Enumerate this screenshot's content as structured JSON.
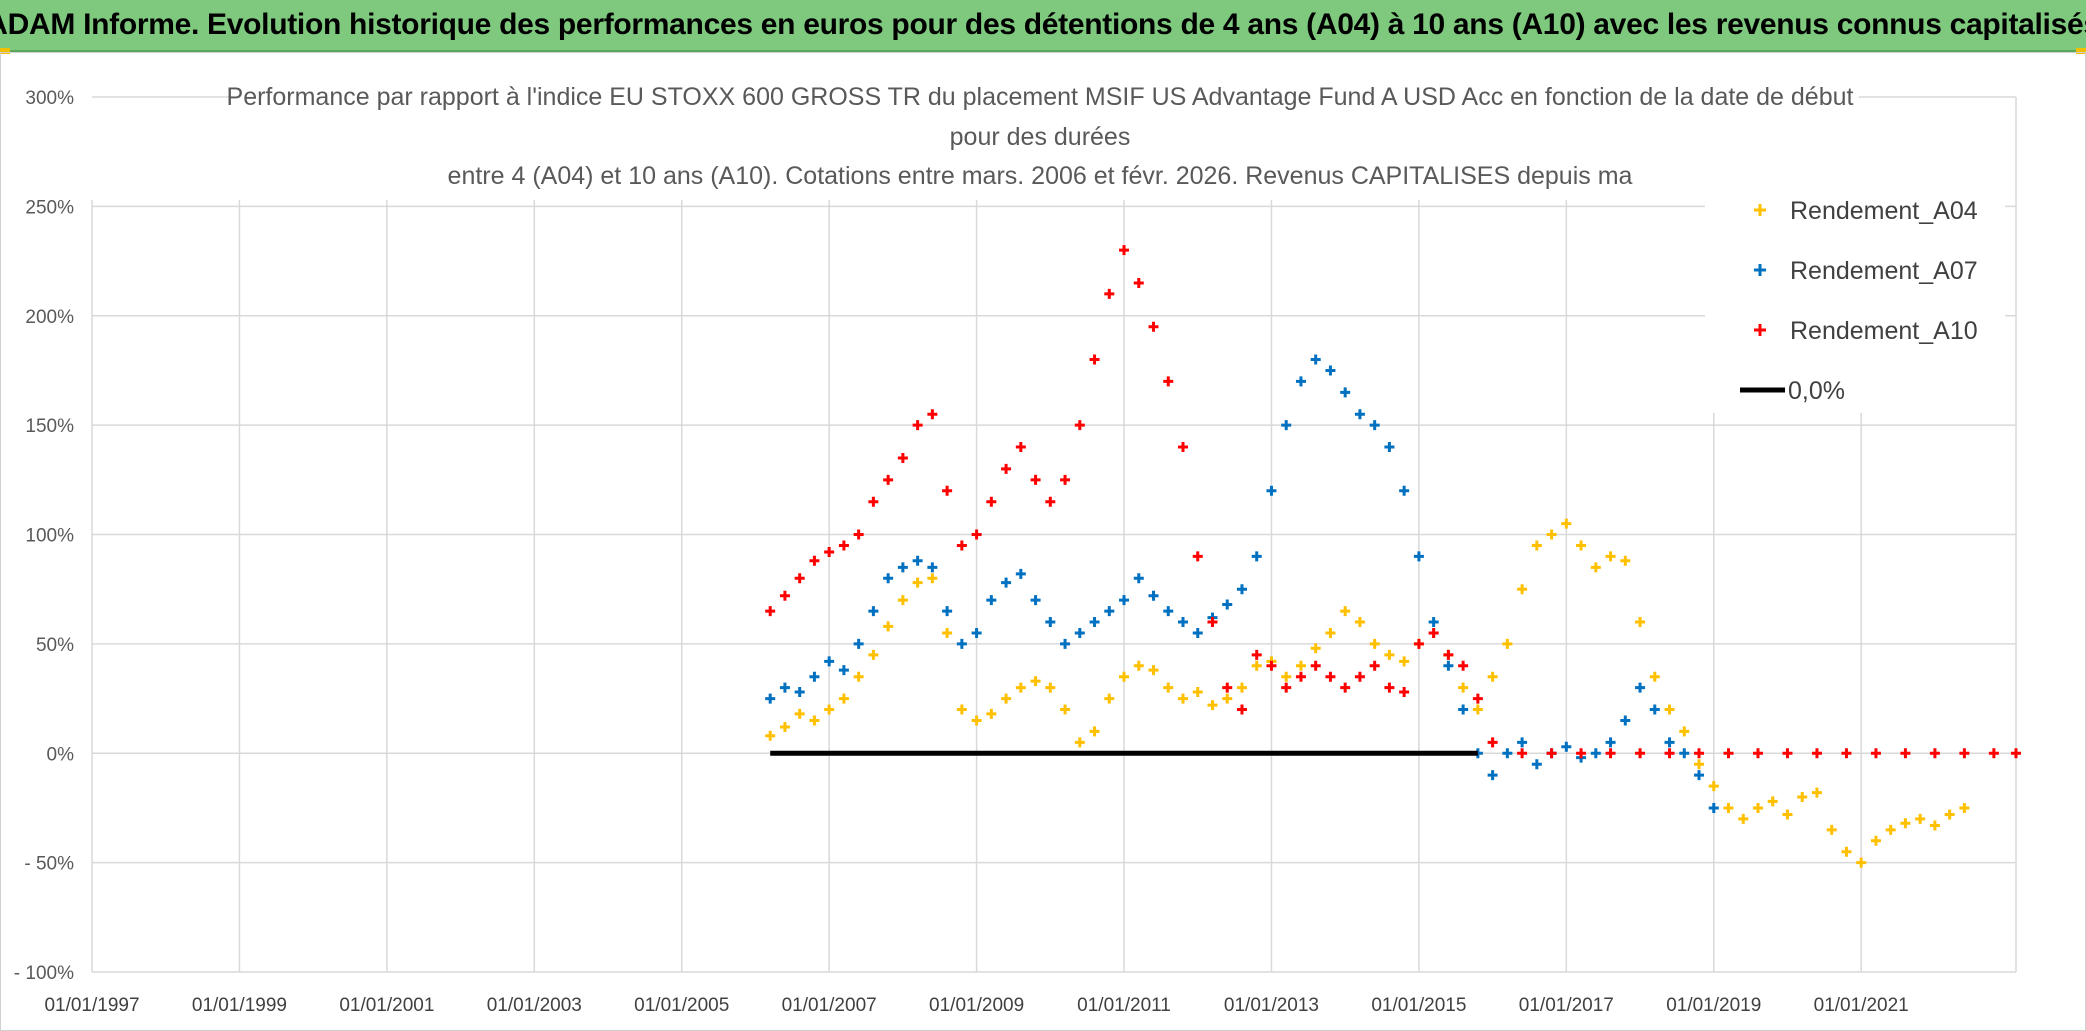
{
  "header": {
    "banner_title": "ADAM Informe. Evolution historique des performances en euros pour des détentions de 4 ans (A04) à 10 ans (A10) avec les revenus connus capitalisés"
  },
  "colors": {
    "banner_bg": "#7fc97f",
    "A04": "#ffc000",
    "A07": "#0070c0",
    "A10": "#ff0000",
    "zero_line": "#000000",
    "grid": "#d9d9d9"
  },
  "chart_data": {
    "type": "scatter",
    "title_lines": [
      "Performance par rapport à l'indice EU STOXX 600 GROSS TR  du placement MSIF US Advantage Fund A USD Acc en fonction de la date de début",
      "pour des durées",
      "entre 4 (A04) et 10 ans (A10). Cotations entre mars. 2006 et févr. 2026. Revenus CAPITALISES depuis ma"
    ],
    "y_ticks": [
      "300%",
      "250%",
      "200%",
      "150%",
      "100%",
      "50%",
      "0%",
      "- 50%",
      "- 100%"
    ],
    "y_tick_values": [
      300,
      250,
      200,
      150,
      100,
      50,
      0,
      -50,
      -100
    ],
    "ylim": [
      -100,
      300
    ],
    "x_ticks": [
      "01/01/1997",
      "01/01/1999",
      "01/01/2001",
      "01/01/2003",
      "01/01/2005",
      "01/01/2007",
      "01/01/2009",
      "01/01/2011",
      "01/01/2013",
      "01/01/2015",
      "01/01/2017",
      "01/01/2019",
      "01/01/2021"
    ],
    "x_tick_years": [
      1997,
      1999,
      2001,
      2003,
      2005,
      2007,
      2009,
      2011,
      2013,
      2015,
      2017,
      2019,
      2021
    ],
    "xlim": [
      1997.0,
      2023.1
    ],
    "legend_position": "top-right",
    "grid": true,
    "series": [
      {
        "name": "Rendement_A04",
        "marker": "+",
        "color": "#ffc000",
        "x": [
          2006.2,
          2006.4,
          2006.6,
          2006.8,
          2007.0,
          2007.2,
          2007.4,
          2007.6,
          2007.8,
          2008.0,
          2008.2,
          2008.4,
          2008.6,
          2008.8,
          2009.0,
          2009.2,
          2009.4,
          2009.6,
          2009.8,
          2010.0,
          2010.2,
          2010.4,
          2010.6,
          2010.8,
          2011.0,
          2011.2,
          2011.4,
          2011.6,
          2011.8,
          2012.0,
          2012.2,
          2012.4,
          2012.6,
          2012.8,
          2013.0,
          2013.2,
          2013.4,
          2013.6,
          2013.8,
          2014.0,
          2014.2,
          2014.4,
          2014.6,
          2014.8,
          2015.0,
          2015.2,
          2015.4,
          2015.6,
          2015.8,
          2016.0,
          2016.2,
          2016.4,
          2016.6,
          2016.8,
          2017.0,
          2017.2,
          2017.4,
          2017.6,
          2017.8,
          2018.0,
          2018.2,
          2018.4,
          2018.6,
          2018.8,
          2019.0,
          2019.2,
          2019.4,
          2019.6,
          2019.8,
          2020.0,
          2020.2,
          2020.4,
          2020.6,
          2020.8,
          2021.0,
          2021.2,
          2021.4,
          2021.6,
          2021.8,
          2022.0,
          2022.2,
          2022.4
        ],
        "y": [
          8,
          12,
          18,
          15,
          20,
          25,
          35,
          45,
          58,
          70,
          78,
          80,
          55,
          20,
          15,
          18,
          25,
          30,
          33,
          30,
          20,
          5,
          10,
          25,
          35,
          40,
          38,
          30,
          25,
          28,
          22,
          25,
          30,
          40,
          42,
          35,
          40,
          48,
          55,
          65,
          60,
          50,
          45,
          42,
          50,
          55,
          45,
          30,
          20,
          35,
          50,
          75,
          95,
          100,
          105,
          95,
          85,
          90,
          88,
          60,
          35,
          20,
          10,
          -5,
          -15,
          -25,
          -30,
          -25,
          -22,
          -28,
          -20,
          -18,
          -35,
          -45,
          -50,
          -40,
          -35,
          -32,
          -30,
          -33,
          -28,
          -25
        ]
      },
      {
        "name": "Rendement_A07",
        "marker": "+",
        "color": "#0070c0",
        "x": [
          2006.2,
          2006.4,
          2006.6,
          2006.8,
          2007.0,
          2007.2,
          2007.4,
          2007.6,
          2007.8,
          2008.0,
          2008.2,
          2008.4,
          2008.6,
          2008.8,
          2009.0,
          2009.2,
          2009.4,
          2009.6,
          2009.8,
          2010.0,
          2010.2,
          2010.4,
          2010.6,
          2010.8,
          2011.0,
          2011.2,
          2011.4,
          2011.6,
          2011.8,
          2012.0,
          2012.2,
          2012.4,
          2012.6,
          2012.8,
          2013.0,
          2013.2,
          2013.4,
          2013.6,
          2013.8,
          2014.0,
          2014.2,
          2014.4,
          2014.6,
          2014.8,
          2015.0,
          2015.2,
          2015.4,
          2015.6,
          2015.8,
          2016.0,
          2016.2,
          2016.4,
          2016.6,
          2016.8,
          2017.0,
          2017.2,
          2017.4,
          2017.6,
          2017.8,
          2018.0,
          2018.2,
          2018.4,
          2018.6,
          2018.8,
          2019.0
        ],
        "y": [
          25,
          30,
          28,
          35,
          42,
          38,
          50,
          65,
          80,
          85,
          88,
          85,
          65,
          50,
          55,
          70,
          78,
          82,
          70,
          60,
          50,
          55,
          60,
          65,
          70,
          80,
          72,
          65,
          60,
          55,
          62,
          68,
          75,
          90,
          120,
          150,
          170,
          180,
          175,
          165,
          155,
          150,
          140,
          120,
          90,
          60,
          40,
          20,
          0,
          -10,
          0,
          5,
          -5,
          0,
          3,
          -2,
          0,
          5,
          15,
          30,
          20,
          5,
          0,
          -10,
          -25
        ]
      },
      {
        "name": "Rendement_A10",
        "marker": "+",
        "color": "#ff0000",
        "x": [
          2006.2,
          2006.4,
          2006.6,
          2006.8,
          2007.0,
          2007.2,
          2007.4,
          2007.6,
          2007.8,
          2008.0,
          2008.2,
          2008.4,
          2008.6,
          2008.8,
          2009.0,
          2009.2,
          2009.4,
          2009.6,
          2009.8,
          2010.0,
          2010.2,
          2010.4,
          2010.6,
          2010.8,
          2011.0,
          2011.2,
          2011.4,
          2011.6,
          2011.8,
          2012.0,
          2012.2,
          2012.4,
          2012.6,
          2012.8,
          2013.0,
          2013.2,
          2013.4,
          2013.6,
          2013.8,
          2014.0,
          2014.2,
          2014.4,
          2014.6,
          2014.8,
          2015.0,
          2015.2,
          2015.4,
          2015.6,
          2015.8,
          2016.0,
          2016.4,
          2016.8,
          2017.2,
          2017.6,
          2018.0,
          2018.4,
          2018.8,
          2019.2,
          2019.6,
          2020.0,
          2020.4,
          2020.8,
          2021.2,
          2021.6,
          2022.0,
          2022.4,
          2022.8,
          2023.1
        ],
        "y": [
          65,
          72,
          80,
          88,
          92,
          95,
          100,
          115,
          125,
          135,
          150,
          155,
          120,
          95,
          100,
          115,
          130,
          140,
          125,
          115,
          125,
          150,
          180,
          210,
          230,
          215,
          195,
          170,
          140,
          90,
          60,
          30,
          20,
          45,
          40,
          30,
          35,
          40,
          35,
          30,
          35,
          40,
          30,
          28,
          50,
          55,
          45,
          40,
          25,
          5,
          0,
          0,
          0,
          0,
          0,
          0,
          0,
          0,
          0,
          0,
          0,
          0,
          0,
          0,
          0,
          0,
          0,
          0
        ]
      },
      {
        "name": "0,0%",
        "type": "line",
        "color": "#000000",
        "x": [
          2006.2,
          2015.8
        ],
        "y": [
          0,
          0
        ]
      }
    ]
  }
}
